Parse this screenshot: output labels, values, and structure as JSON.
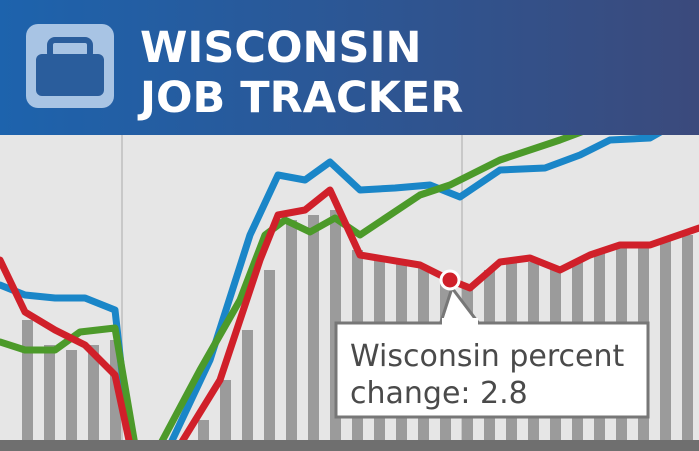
{
  "header": {
    "title_lines": [
      "WISCONSIN",
      "JOB TRACKER"
    ]
  },
  "callout": {
    "lines": [
      "Wisconsin percent",
      "change: 2.8"
    ]
  }
}
